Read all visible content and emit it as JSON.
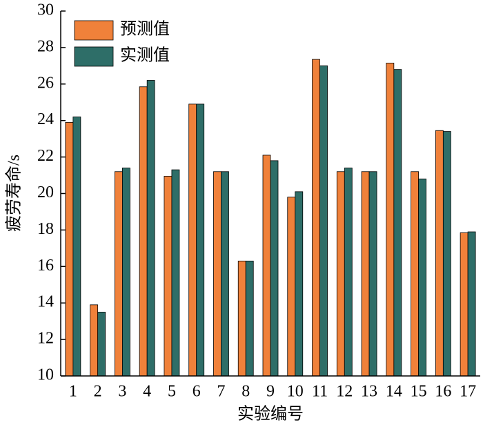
{
  "chart_data": {
    "type": "bar",
    "x_label": "实验编号",
    "y_label": "疲劳寿命/s",
    "categories": [
      "1",
      "2",
      "3",
      "4",
      "5",
      "6",
      "7",
      "8",
      "9",
      "10",
      "11",
      "12",
      "13",
      "14",
      "15",
      "16",
      "17"
    ],
    "series": [
      {
        "name": "预测值",
        "color": "#f0813a",
        "values": [
          23.9,
          13.9,
          21.2,
          25.85,
          20.95,
          24.9,
          21.2,
          16.3,
          22.1,
          19.8,
          27.35,
          21.2,
          21.2,
          27.15,
          21.2,
          23.45,
          17.85
        ]
      },
      {
        "name": "实测值",
        "color": "#2e6e68",
        "values": [
          24.2,
          13.5,
          21.4,
          26.2,
          21.3,
          24.9,
          21.2,
          16.3,
          21.8,
          20.1,
          27.0,
          21.4,
          21.2,
          26.8,
          20.8,
          23.4,
          17.9
        ]
      }
    ],
    "ylim": [
      10,
      30
    ],
    "yticks": [
      10,
      12,
      14,
      16,
      18,
      20,
      22,
      24,
      26,
      28,
      30
    ],
    "legend": "upper left",
    "grid": false
  }
}
